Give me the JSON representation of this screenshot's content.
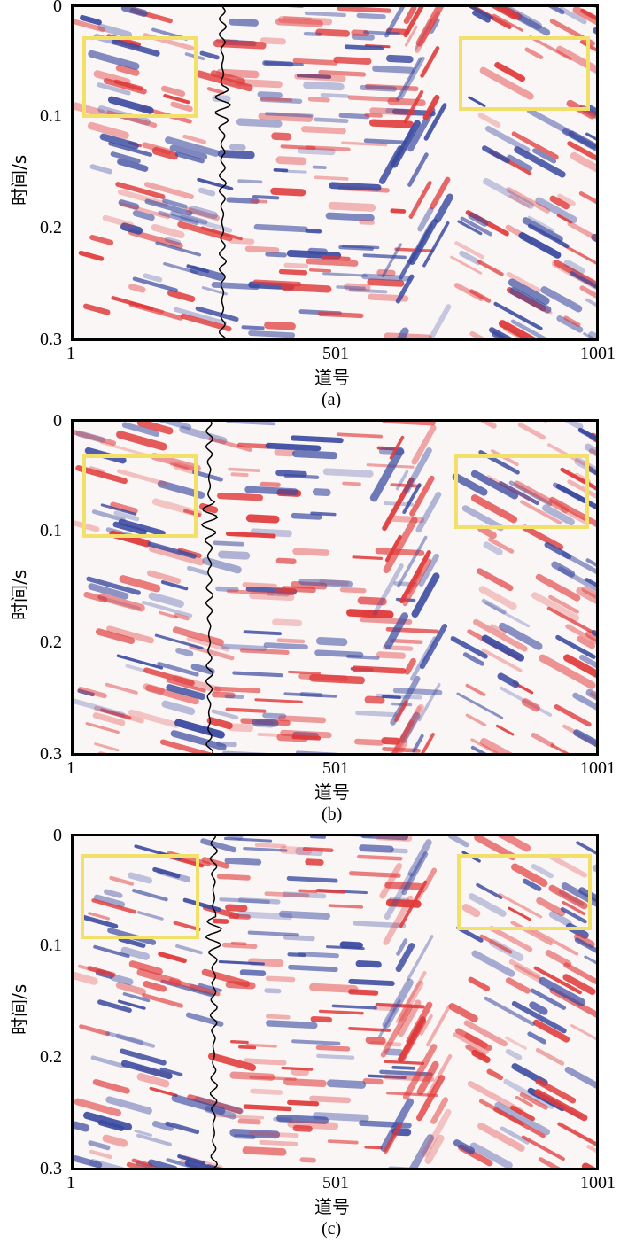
{
  "panels": [
    {
      "caption": "(a)",
      "y_axis_label": "时间/s",
      "x_axis_label": "道号",
      "y_ticks": [
        "0",
        "0.1",
        "0.2",
        "0.3"
      ],
      "x_ticks": [
        "1",
        "501",
        "1001"
      ]
    },
    {
      "caption": "(b)",
      "y_axis_label": "时间/s",
      "x_axis_label": "道号",
      "y_ticks": [
        "0",
        "0.1",
        "0.2",
        "0.3"
      ],
      "x_ticks": [
        "1",
        "501",
        "1001"
      ]
    },
    {
      "caption": "(c)",
      "y_axis_label": "时间/s",
      "x_axis_label": "道号",
      "y_ticks": [
        "0",
        "0.1",
        "0.2",
        "0.3"
      ],
      "x_ticks": [
        "1",
        "501",
        "1001"
      ]
    }
  ],
  "colors": {
    "positive": "#e03a3a",
    "negative": "#3a4aa0",
    "highlight_box": "#f2e06a",
    "trace": "#000000"
  }
}
